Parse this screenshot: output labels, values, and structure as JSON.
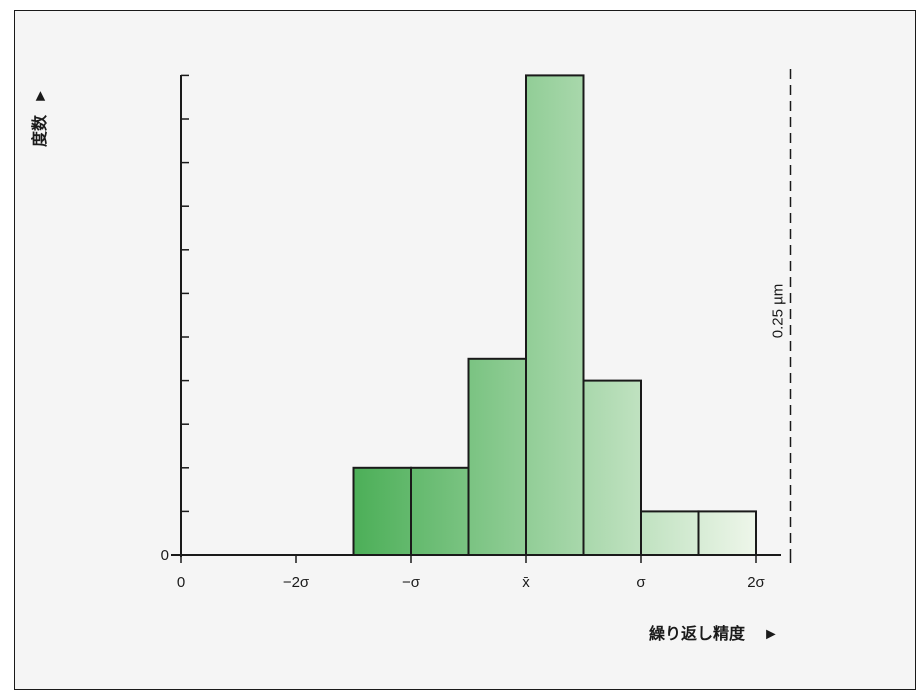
{
  "chart_data": {
    "type": "bar",
    "xlabel": "繰り返し精度",
    "ylabel": "度数",
    "x_axis_arrow": "►",
    "y_axis_arrow": "►",
    "x_ticks": [
      {
        "label": "0",
        "value": -3.0
      },
      {
        "label": "−2σ",
        "value": -2.0
      },
      {
        "label": "−σ",
        "value": -1.0
      },
      {
        "label": "x̄",
        "value": 0.0
      },
      {
        "label": "σ",
        "value": 1.0
      },
      {
        "label": "2σ",
        "value": 2.0
      }
    ],
    "y_zero_label": "0",
    "y_minor_ticks": 11,
    "ylim": [
      0,
      11
    ],
    "bins": [
      {
        "x0": -1.5,
        "x1": -1.0,
        "value": 2.0
      },
      {
        "x0": -1.0,
        "x1": -0.5,
        "value": 2.0
      },
      {
        "x0": -0.5,
        "x1": 0.0,
        "value": 4.5
      },
      {
        "x0": 0.0,
        "x1": 0.5,
        "value": 11.0
      },
      {
        "x0": 0.5,
        "x1": 1.0,
        "value": 4.0
      },
      {
        "x0": 1.0,
        "x1": 1.5,
        "value": 1.0
      },
      {
        "x0": 1.5,
        "x1": 2.0,
        "value": 1.0
      }
    ],
    "limit_line": {
      "x": 2.3,
      "label": "0.25 µm",
      "style": "dashed"
    },
    "bar_gradient": {
      "start": "#4caf58",
      "end": "#eef6ea"
    },
    "bar_stroke": "#1a1a1a",
    "background": "#f5f5f5"
  }
}
